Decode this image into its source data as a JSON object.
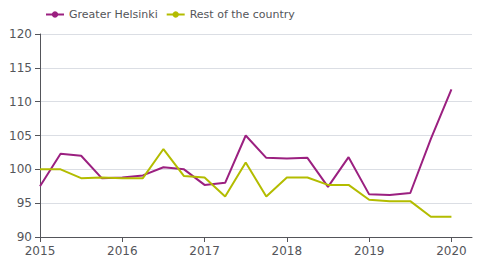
{
  "chart_data": {
    "type": "line",
    "x": [
      2015.0,
      2015.25,
      2015.5,
      2015.75,
      2016.0,
      2016.25,
      2016.5,
      2016.75,
      2017.0,
      2017.25,
      2017.5,
      2017.75,
      2018.0,
      2018.25,
      2018.5,
      2018.75,
      2019.0,
      2019.25,
      2019.5,
      2019.75,
      2020.0
    ],
    "series": [
      {
        "name": "Greater Helsinki",
        "color": "#9b2080",
        "values": [
          97.5,
          102.3,
          102.0,
          98.7,
          98.8,
          99.1,
          100.3,
          100.0,
          97.7,
          98.0,
          105.0,
          101.7,
          101.6,
          101.7,
          97.4,
          101.8,
          96.3,
          96.2,
          96.5,
          104.5,
          111.8
        ]
      },
      {
        "name": "Rest of the country",
        "color": "#b3bc00",
        "values": [
          100.0,
          100.0,
          98.7,
          98.8,
          98.7,
          98.7,
          103.0,
          99.0,
          98.8,
          96.0,
          101.0,
          96.0,
          98.8,
          98.8,
          97.7,
          97.7,
          95.5,
          95.3,
          95.3,
          93.0,
          93.0
        ]
      }
    ],
    "xlim": [
      2015.0,
      2020.25
    ],
    "xticks": [
      2015,
      2016,
      2017,
      2018,
      2019,
      2020
    ],
    "ylim": [
      90,
      120
    ],
    "yticks": [
      90,
      95,
      100,
      105,
      110,
      115,
      120
    ],
    "grid": true,
    "legend": "upper left"
  }
}
